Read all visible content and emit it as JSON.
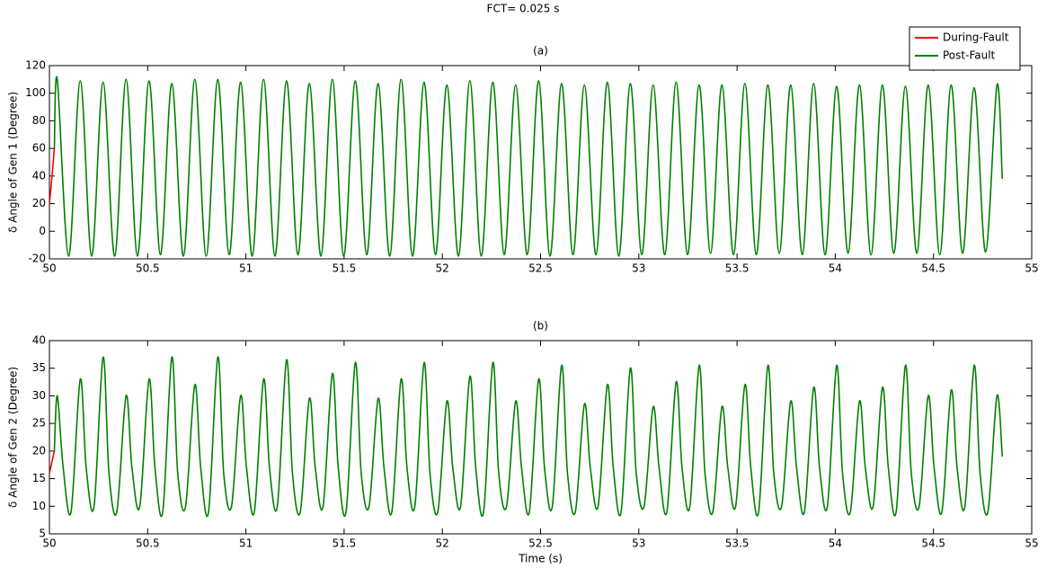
{
  "title": "FCT= 0.025 s",
  "chart_data": [
    {
      "type": "line",
      "title": "(a)",
      "ylabel": "δ Angle of Gen 1 (Degree)",
      "xlim": [
        50,
        55
      ],
      "xticks": [
        50,
        50.5,
        51,
        51.5,
        52,
        52.5,
        53,
        53.5,
        54,
        54.5,
        55
      ],
      "ylim": [
        -20,
        120
      ],
      "yticks": [
        -20,
        0,
        20,
        40,
        60,
        80,
        100,
        120
      ],
      "legend": "upper right",
      "series": [
        {
          "name": "During-Fault",
          "color": "#ff0000",
          "x": [
            50,
            50.01,
            50.025
          ],
          "values": [
            20,
            35,
            60
          ]
        },
        {
          "name": "Post-Fault",
          "color": "#008000",
          "x": [
            50.025,
            50.04,
            50.098,
            50.157,
            50.215,
            50.273,
            50.332,
            50.39,
            50.448,
            50.507,
            50.565,
            50.623,
            50.682,
            50.74,
            50.798,
            50.857,
            50.915,
            50.973,
            51.032,
            51.09,
            51.148,
            51.207,
            51.265,
            51.323,
            51.382,
            51.44,
            51.498,
            51.557,
            51.615,
            51.673,
            51.732,
            51.79,
            51.848,
            51.907,
            51.965,
            52.023,
            52.082,
            52.14,
            52.198,
            52.257,
            52.315,
            52.373,
            52.432,
            52.49,
            52.548,
            52.607,
            52.665,
            52.723,
            52.782,
            52.84,
            52.898,
            52.957,
            53.015,
            53.073,
            53.132,
            53.19,
            53.248,
            53.307,
            53.365,
            53.423,
            53.482,
            53.54,
            53.598,
            53.657,
            53.715,
            53.773,
            53.832,
            53.89,
            53.948,
            54.007,
            54.065,
            54.123,
            54.182,
            54.24,
            54.298,
            54.357,
            54.415,
            54.473,
            54.532,
            54.59,
            54.648,
            54.707,
            54.765,
            54.823,
            54.85
          ],
          "values": [
            60,
            110,
            -18,
            109,
            -18,
            108,
            -18,
            110,
            -18,
            109,
            -17,
            107,
            -18,
            110,
            -18,
            110,
            -17,
            108,
            -18,
            110,
            -18,
            109,
            -17,
            107,
            -18,
            110,
            -18,
            109,
            -17,
            107,
            -18,
            110,
            -18,
            108,
            -17,
            106,
            -18,
            109,
            -18,
            108,
            -17,
            106,
            -17,
            109,
            -18,
            107,
            -17,
            106,
            -17,
            108,
            -18,
            107,
            -17,
            106,
            -17,
            108,
            -17,
            106,
            -16,
            106,
            -17,
            107,
            -17,
            106,
            -16,
            106,
            -17,
            107,
            -17,
            105,
            -16,
            106,
            -17,
            106,
            -16,
            105,
            -16,
            106,
            -17,
            106,
            -16,
            104,
            -15,
            106,
            38
          ]
        }
      ]
    },
    {
      "type": "line",
      "title": "(b)",
      "ylabel": "δ Angle of Gen 2 (Degree)",
      "xlabel": "Time (s)",
      "xlim": [
        50,
        55
      ],
      "xticks": [
        50,
        50.5,
        51,
        51.5,
        52,
        52.5,
        53,
        53.5,
        54,
        54.5,
        55
      ],
      "ylim": [
        5,
        40
      ],
      "yticks": [
        5,
        10,
        15,
        20,
        25,
        30,
        35,
        40
      ],
      "series": [
        {
          "color": "#ff0000",
          "x": [
            50,
            50.025
          ],
          "values": [
            16,
            20
          ]
        },
        {
          "color": "#008000",
          "x": [
            50.025,
            50.04,
            50.07,
            50.11,
            50.157,
            50.187,
            50.227,
            50.273,
            50.303,
            50.343,
            50.39,
            50.42,
            50.46,
            50.507,
            50.537,
            50.577,
            50.623,
            50.653,
            50.693,
            50.74,
            50.77,
            50.81,
            50.857,
            50.887,
            50.927,
            50.973,
            51.003,
            51.043,
            51.09,
            51.12,
            51.16,
            51.207,
            51.237,
            51.277,
            51.323,
            51.353,
            51.393,
            51.44,
            51.47,
            51.51,
            51.557,
            51.587,
            51.627,
            51.673,
            51.703,
            51.743,
            51.79,
            51.82,
            51.86,
            51.907,
            51.937,
            51.977,
            52.023,
            52.053,
            52.093,
            52.14,
            52.17,
            52.21,
            52.257,
            52.287,
            52.327,
            52.373,
            52.403,
            52.443,
            52.49,
            52.52,
            52.56,
            52.607,
            52.637,
            52.677,
            52.723,
            52.753,
            52.793,
            52.84,
            52.87,
            52.91,
            52.957,
            52.987,
            53.027,
            53.073,
            53.103,
            53.143,
            53.19,
            53.22,
            53.26,
            53.307,
            53.337,
            53.377,
            53.423,
            53.453,
            53.493,
            53.54,
            53.57,
            53.61,
            53.657,
            53.687,
            53.727,
            53.773,
            53.803,
            53.843,
            53.89,
            53.92,
            53.96,
            54.007,
            54.037,
            54.077,
            54.123,
            54.153,
            54.193,
            54.24,
            54.27,
            54.31,
            54.357,
            54.387,
            54.427,
            54.473,
            54.503,
            54.543,
            54.59,
            54.62,
            54.66,
            54.707,
            54.737,
            54.777,
            54.823,
            54.85
          ],
          "values": [
            20,
            30,
            17,
            9,
            33,
            17,
            10,
            37,
            16,
            9,
            30,
            17,
            10,
            33,
            17,
            9,
            37,
            16,
            10,
            32,
            17,
            9,
            37,
            16,
            10,
            30,
            17,
            9,
            33,
            17,
            10,
            36.5,
            16,
            9,
            29.5,
            17,
            10,
            34,
            17,
            9,
            36,
            16,
            10,
            29.5,
            17,
            9,
            33,
            17,
            10,
            36,
            16,
            9,
            29,
            17,
            10,
            33.5,
            17,
            9,
            36,
            16,
            10,
            29,
            17,
            9,
            33,
            17,
            10,
            35.5,
            16,
            9,
            28.5,
            17,
            10,
            32,
            17,
            9,
            35,
            16,
            10,
            28,
            17,
            9,
            32.5,
            17,
            10,
            35.5,
            16,
            9,
            28,
            17,
            10,
            32,
            17,
            9,
            35.5,
            16,
            10,
            29,
            17,
            9,
            31.5,
            17,
            10,
            35.5,
            16,
            9,
            29,
            17,
            10,
            31.5,
            17,
            9,
            35.5,
            16,
            10,
            30,
            17,
            9,
            31,
            17,
            10,
            35.5,
            16,
            9,
            30,
            19
          ]
        }
      ]
    }
  ]
}
